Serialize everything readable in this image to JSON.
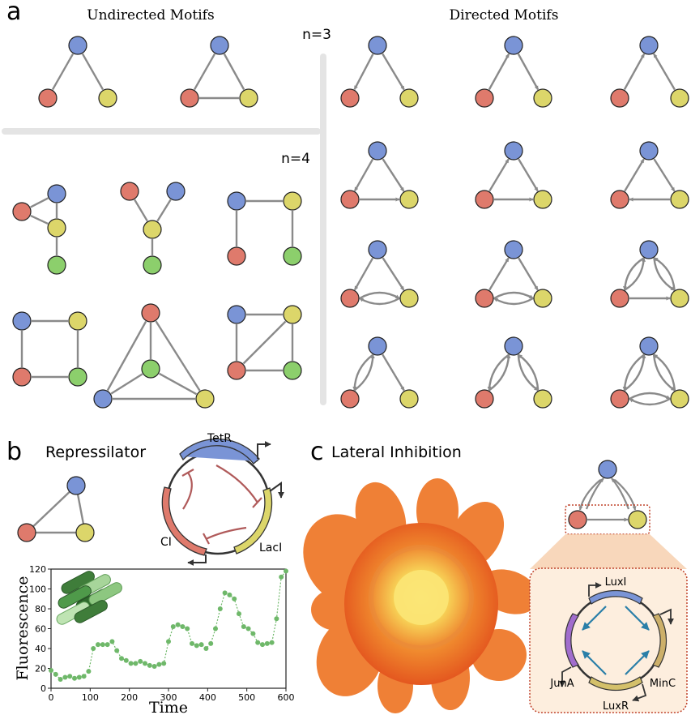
{
  "panel_a": {
    "letter": "a",
    "undirected_title": "Undirected Motifs",
    "directed_title": "Directed Motifs",
    "n3_label": "n=3",
    "n4_label": "n=4"
  },
  "panel_b": {
    "letter": "b",
    "title": "Repressilator",
    "genes": [
      "TetR",
      "CI",
      "LacI"
    ]
  },
  "panel_c": {
    "letter": "c",
    "title": "Lateral Inhibition",
    "genes": [
      "LuxI",
      "MinC",
      "LuxR",
      "JunA"
    ]
  },
  "colors": {
    "blue": "#7a94d6",
    "red": "#df7a6c",
    "yellow": "#dcd66a",
    "green": "#8ccf6c",
    "edge": "#8a8a8a",
    "repression": "#b05a5a",
    "activation": "#2a7fa8",
    "divider": "#e4e4e4"
  },
  "chart_data": {
    "type": "scatter",
    "xlabel": "Time",
    "ylabel": "Fluorescence",
    "xlim": [
      0,
      600
    ],
    "ylim": [
      0,
      120
    ],
    "xticks": [
      0,
      100,
      200,
      300,
      400,
      500,
      600
    ],
    "yticks": [
      0,
      20,
      40,
      60,
      80,
      100,
      120
    ],
    "x": [
      0,
      12,
      24,
      36,
      48,
      60,
      72,
      84,
      96,
      108,
      120,
      132,
      144,
      156,
      168,
      180,
      192,
      204,
      216,
      228,
      240,
      252,
      264,
      276,
      288,
      300,
      312,
      324,
      336,
      348,
      360,
      372,
      384,
      396,
      408,
      420,
      432,
      444,
      456,
      468,
      480,
      492,
      504,
      516,
      528,
      540,
      552,
      564,
      576,
      588,
      600
    ],
    "y": [
      18,
      14,
      9,
      11,
      12,
      10,
      11,
      12,
      17,
      40,
      44,
      44,
      44,
      47,
      38,
      30,
      28,
      25,
      25,
      27,
      25,
      23,
      22,
      24,
      25,
      47,
      62,
      64,
      62,
      60,
      45,
      43,
      44,
      40,
      45,
      60,
      80,
      96,
      94,
      90,
      75,
      62,
      60,
      55,
      46,
      44,
      45,
      46,
      70,
      112,
      118
    ],
    "series_color": "#6fb86a"
  }
}
